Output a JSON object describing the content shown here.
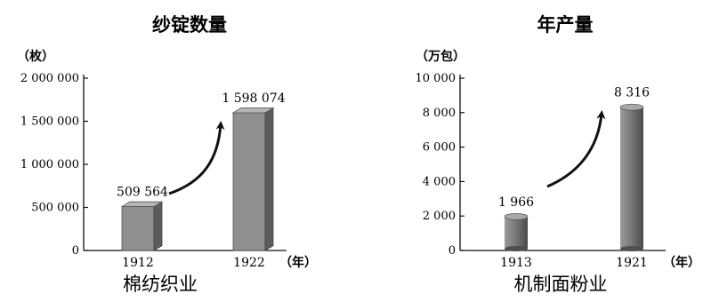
{
  "chart_data": [
    {
      "type": "bar",
      "title": "纱锭数量",
      "unit_label": "（枚）",
      "xunit_label": "（年）",
      "caption": "棉纺织业",
      "categories": [
        "1912",
        "1922"
      ],
      "values": [
        509564,
        1598074
      ],
      "value_labels": [
        "509 564",
        "1 598 074"
      ],
      "ylim": [
        0,
        2000000
      ],
      "yticks": [
        0,
        500000,
        1000000,
        1500000,
        2000000
      ],
      "ytick_labels": [
        "0",
        "500 000",
        "1 000 000",
        "1 500 000",
        "2 000 000"
      ],
      "bar_color": "#8f8f8f",
      "bar_shape": "box",
      "growth_arrow": true,
      "grid": false
    },
    {
      "type": "bar",
      "title": "年产量",
      "unit_label": "（万包）",
      "xunit_label": "（年）",
      "caption": "机制面粉业",
      "categories": [
        "1913",
        "1921"
      ],
      "values": [
        1966,
        8316
      ],
      "value_labels": [
        "1 966",
        "8 316"
      ],
      "ylim": [
        0,
        10000
      ],
      "yticks": [
        0,
        2000,
        4000,
        6000,
        8000,
        10000
      ],
      "ytick_labels": [
        "0",
        "2 000",
        "4 000",
        "6 000",
        "8 000",
        "10 000"
      ],
      "bar_color": "#6f6f6f",
      "bar_shape": "cylinder",
      "growth_arrow": true,
      "grid": false
    }
  ]
}
